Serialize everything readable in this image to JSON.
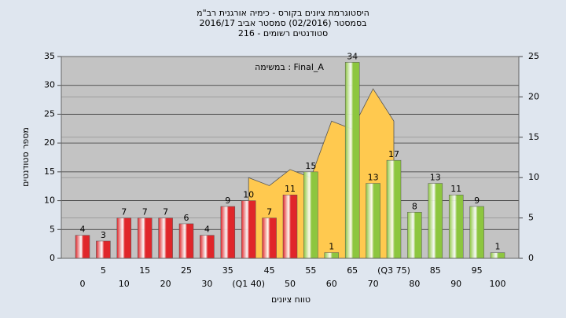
{
  "chart_data": {
    "type": "bar",
    "title": "היסטוגרמת ציונים בקורס - כימיה אורגנית רב\"מ",
    "subtitle": [
      "בסמסטר  (02/2016)  סמסטר אביב 2016/17",
      "סטודנטים רשומים - 216"
    ],
    "annotation": "במשימה : Final_A",
    "x_label": "טווח ציונים",
    "y_label": "מספר סטודנטים",
    "categories": [
      "0",
      "5",
      "10",
      "15",
      "20",
      "25",
      "30",
      "35",
      "(Q1 40)",
      "45",
      "50",
      "55",
      "60",
      "65",
      "70",
      "(Q3 75)",
      "80",
      "85",
      "90",
      "95",
      "100"
    ],
    "series": [
      {
        "type": "bar",
        "values": [
          4,
          3,
          7,
          7,
          7,
          6,
          4,
          9,
          10,
          7,
          11,
          15,
          1,
          34,
          13,
          17,
          8,
          13,
          11,
          9,
          1
        ],
        "colors": [
          "#e0262a",
          "#e0262a",
          "#e0262a",
          "#e0262a",
          "#e0262a",
          "#e0262a",
          "#e0262a",
          "#e0262a",
          "#e0262a",
          "#e0262a",
          "#e0262a",
          "#8dc63f",
          "#8dc63f",
          "#8dc63f",
          "#8dc63f",
          "#8dc63f",
          "#8dc63f",
          "#8dc63f",
          "#8dc63f",
          "#8dc63f",
          "#8dc63f"
        ]
      },
      {
        "type": "area",
        "axis": "y2",
        "color": "#ffc94f",
        "values": [
          null,
          null,
          null,
          null,
          null,
          null,
          null,
          null,
          10,
          9,
          11,
          10,
          17,
          16,
          21,
          17,
          null,
          null,
          null,
          null,
          null
        ]
      }
    ],
    "ylim": [
      0,
      35
    ],
    "yticks": [
      0,
      5,
      10,
      15,
      20,
      25,
      30,
      35
    ],
    "y2lim": [
      0,
      25
    ],
    "y2ticks": [
      0,
      5,
      10,
      15,
      20,
      25
    ],
    "grid": true
  }
}
